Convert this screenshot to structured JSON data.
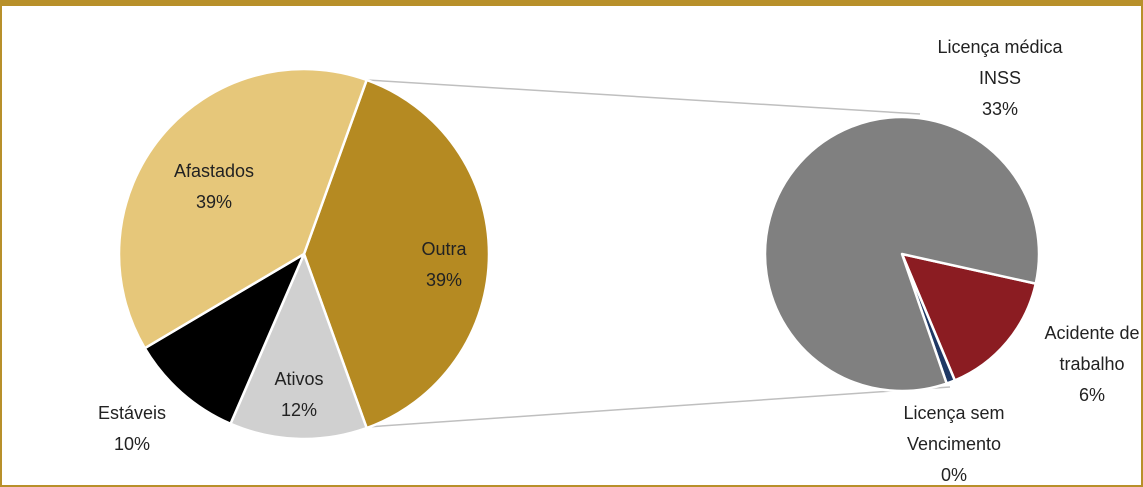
{
  "chart_data": [
    {
      "type": "pie",
      "categories": [
        "Outra",
        "Ativos",
        "Estáveis",
        "Afastados"
      ],
      "values": [
        39,
        12,
        10,
        39
      ],
      "value_labels": [
        "39%",
        "12%",
        "10%",
        "39%"
      ],
      "colors": [
        "#b58a22",
        "#d0d0d0",
        "#000000",
        "#e6c77a"
      ]
    },
    {
      "type": "pie",
      "categories": [
        "Acidente de trabalho",
        "Licença sem Vencimento",
        "Licença médica INSS"
      ],
      "values": [
        6,
        0.4,
        33
      ],
      "value_labels": [
        "6%",
        "0%",
        "33%"
      ],
      "colors": [
        "#8b1c22",
        "#1f3864",
        "#808080"
      ]
    }
  ]
}
